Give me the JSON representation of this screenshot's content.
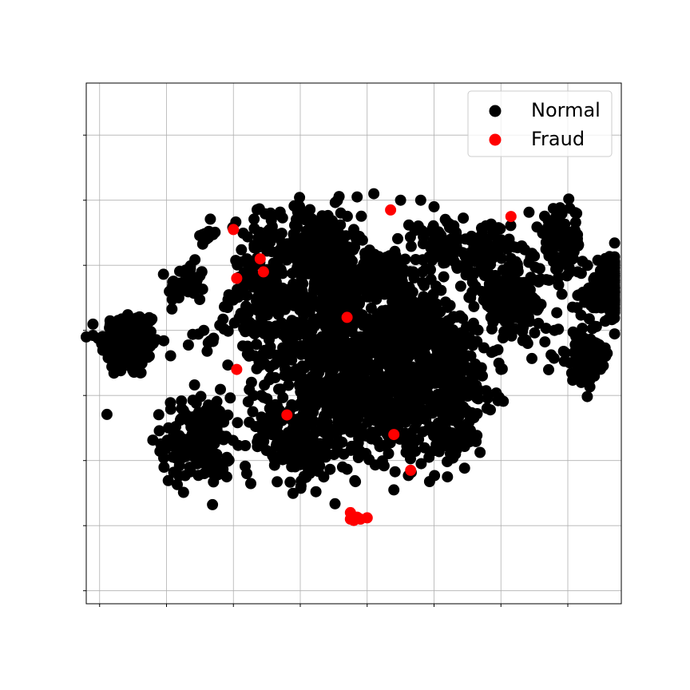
{
  "chart_data": {
    "type": "scatter",
    "title": "",
    "xlabel": "",
    "ylabel": "",
    "xlim": [
      -40,
      40
    ],
    "ylim": [
      -40,
      40
    ],
    "grid": true,
    "tick_labels_shown": false,
    "xticks": [
      -38,
      -28,
      -18,
      -8,
      2,
      12,
      22,
      32
    ],
    "yticks": [
      -38,
      -28,
      -18,
      -8,
      2,
      12,
      22,
      32
    ],
    "legend": {
      "placement": "top-right"
    },
    "series": [
      {
        "name": "Normal",
        "color": "#000000",
        "clusters": [
          {
            "cx": -33.5,
            "cy": 0.0,
            "sx": 2.2,
            "sy": 2.6,
            "n": 180
          },
          {
            "cx": -25.0,
            "cy": 9.0,
            "sx": 1.4,
            "sy": 1.6,
            "n": 45
          },
          {
            "cx": -22.0,
            "cy": 17.0,
            "sx": 0.9,
            "sy": 0.9,
            "n": 12
          },
          {
            "cx": -22.5,
            "cy": 0.5,
            "sx": 0.9,
            "sy": 0.9,
            "n": 10
          },
          {
            "cx": -23.5,
            "cy": -15.0,
            "sx": 2.6,
            "sy": 3.4,
            "n": 170
          },
          {
            "cx": -13.0,
            "cy": 8.0,
            "sx": 2.8,
            "sy": 6.0,
            "n": 220
          },
          {
            "cx": -5.0,
            "cy": 14.0,
            "sx": 3.0,
            "sy": 3.5,
            "n": 200
          },
          {
            "cx": -2.0,
            "cy": 9.0,
            "sx": 2.0,
            "sy": 2.0,
            "n": 120
          },
          {
            "cx": -4.0,
            "cy": -2.0,
            "sx": 3.8,
            "sy": 6.5,
            "n": 420
          },
          {
            "cx": -8.0,
            "cy": -16.0,
            "sx": 2.5,
            "sy": 3.0,
            "n": 130
          },
          {
            "cx": 5.5,
            "cy": -8.0,
            "sx": 4.5,
            "sy": 5.0,
            "n": 420
          },
          {
            "cx": 9.0,
            "cy": 2.0,
            "sx": 4.5,
            "sy": 3.5,
            "n": 300
          },
          {
            "cx": 4.5,
            "cy": 10.5,
            "sx": 3.0,
            "sy": 2.0,
            "n": 120
          },
          {
            "cx": 13.0,
            "cy": 15.0,
            "sx": 2.2,
            "sy": 2.0,
            "n": 80
          },
          {
            "cx": 19.5,
            "cy": 14.0,
            "sx": 2.0,
            "sy": 2.2,
            "n": 80
          },
          {
            "cx": 15.0,
            "cy": -6.0,
            "sx": 3.0,
            "sy": 4.0,
            "n": 200
          },
          {
            "cx": 24.0,
            "cy": 7.0,
            "sx": 3.0,
            "sy": 3.0,
            "n": 150
          },
          {
            "cx": 31.0,
            "cy": 16.0,
            "sx": 1.6,
            "sy": 2.5,
            "n": 90
          },
          {
            "cx": 38.5,
            "cy": 8.0,
            "sx": 2.5,
            "sy": 2.5,
            "n": 140
          },
          {
            "cx": 34.5,
            "cy": -2.0,
            "sx": 2.0,
            "sy": 1.8,
            "n": 90
          },
          {
            "cx": -13.0,
            "cy": -12.0,
            "sx": 1.5,
            "sy": 2.0,
            "n": 40
          },
          {
            "cx": 15.0,
            "cy": -15.0,
            "sx": 2.0,
            "sy": 1.5,
            "n": 40
          }
        ],
        "points": [
          [
            -30,
            0
          ],
          [
            -40,
            1
          ],
          [
            -19,
            -20.5
          ],
          [
            -16,
            -20
          ],
          [
            0,
            17.5
          ],
          [
            7,
            22
          ],
          [
            3,
            23
          ],
          [
            17,
            12
          ],
          [
            20.5,
            4
          ],
          [
            34,
            -6
          ],
          [
            28,
            6
          ],
          [
            30,
            2
          ],
          [
            26,
            0
          ],
          [
            -33,
            -4
          ],
          [
            22,
            -4
          ],
          [
            12,
            21
          ],
          [
            10,
            22
          ],
          [
            -6,
            3
          ],
          [
            14,
            -20.5
          ],
          [
            6,
            -22.5
          ],
          [
            0.5,
            22.5
          ]
        ]
      },
      {
        "name": "Fraud",
        "color": "#ff0000",
        "points": [
          [
            -18,
            17.5
          ],
          [
            -17.5,
            10
          ],
          [
            -14,
            13
          ],
          [
            -13.5,
            11
          ],
          [
            -17.5,
            -4
          ],
          [
            -10,
            -11
          ],
          [
            -1,
            4
          ],
          [
            5.5,
            20.5
          ],
          [
            6,
            -14
          ],
          [
            8.5,
            -19.5
          ],
          [
            23.5,
            19.5
          ],
          [
            -0.3,
            -26.5
          ],
          [
            0.5,
            -26.7
          ],
          [
            -0.5,
            -26
          ],
          [
            1,
            -27
          ],
          [
            2,
            -26.8
          ],
          [
            0,
            -27.2
          ],
          [
            -0.5,
            -27
          ]
        ]
      }
    ]
  }
}
